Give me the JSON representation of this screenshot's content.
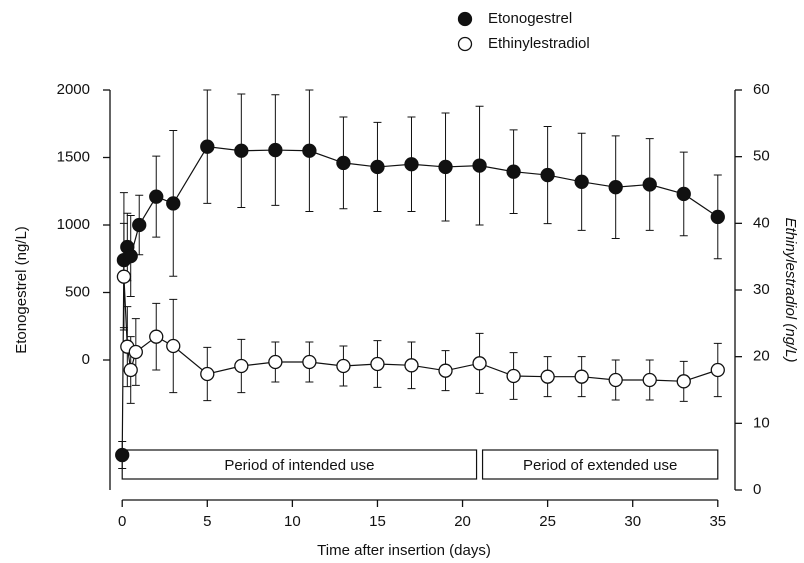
{
  "chart_data": {
    "type": "errorbar-line",
    "xlabel": "Time after insertion (days)",
    "ylabel": "Etonogestrel (ng/L)",
    "y2label": "Ethinylestradiol (ng/L)",
    "xlim": [
      -0.6,
      35.6
    ],
    "xticks": [
      0,
      5,
      10,
      15,
      20,
      25,
      30,
      35
    ],
    "ylim": [
      -963,
      2000
    ],
    "yticks": [
      0,
      500,
      1000,
      1500,
      2000
    ],
    "y2lim": [
      0,
      60
    ],
    "y2ticks": [
      0,
      10,
      20,
      30,
      40,
      50,
      60
    ],
    "annotations": [
      "Period of intended use",
      "Period of extended use"
    ],
    "series": [
      {
        "name": "Etonogestrel",
        "color": "#111111",
        "marker": "filled",
        "x": [
          0,
          0.1,
          0.3,
          0.5,
          1,
          2,
          3,
          5,
          7,
          9,
          11,
          13,
          15,
          17,
          19,
          21,
          23,
          25,
          27,
          29,
          31,
          33,
          35
        ],
        "values": [
          -704,
          740,
          837,
          770,
          1000,
          1210,
          1160,
          1580,
          1550,
          1555,
          1550,
          1460,
          1430,
          1450,
          1430,
          1440,
          1395,
          1370,
          1320,
          1280,
          1300,
          1230,
          1060
        ],
        "errors": [
          100,
          500,
          250,
          300,
          220,
          300,
          540,
          420,
          420,
          410,
          450,
          340,
          330,
          350,
          400,
          440,
          310,
          360,
          360,
          380,
          340,
          310,
          310
        ]
      },
      {
        "name": "Ethinylestradiol",
        "color": "#111111",
        "marker": "open",
        "axis": "y2",
        "x": [
          0.1,
          0.3,
          0.5,
          0.8,
          2,
          3,
          5,
          7,
          9,
          11,
          13,
          15,
          17,
          19,
          21,
          23,
          25,
          27,
          29,
          31,
          33,
          35
        ],
        "values": [
          32,
          21.5,
          18,
          20.7,
          23,
          21.6,
          17.4,
          18.6,
          19.2,
          19.2,
          18.6,
          18.9,
          18.7,
          17.9,
          19,
          17.1,
          17,
          17,
          16.5,
          16.5,
          16.3,
          18
        ],
        "errors": [
          8,
          6,
          5,
          5,
          5,
          7,
          4,
          4,
          3,
          3,
          3,
          3.5,
          3.5,
          3,
          4.5,
          3.5,
          3,
          3,
          3,
          3,
          3,
          4
        ]
      }
    ]
  }
}
